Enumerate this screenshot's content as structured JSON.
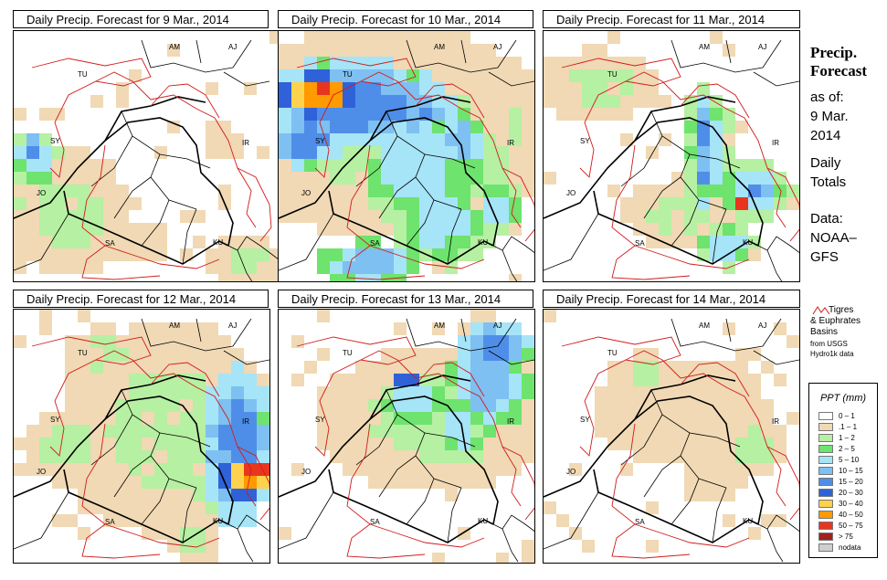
{
  "panels": [
    {
      "title": "Daily Precip. Forecast for  9 Mar., 2014"
    },
    {
      "title": "Daily Precip. Forecast for  10 Mar., 2014"
    },
    {
      "title": "Daily Precip. Forecast for  11 Mar., 2014"
    },
    {
      "title": "Daily Precip. Forecast for  12 Mar., 2014"
    },
    {
      "title": "Daily Precip. Forecast for  13 Mar., 2014"
    },
    {
      "title": "Daily Precip. Forecast for  14 Mar., 2014"
    }
  ],
  "map_labels": {
    "am": "AM",
    "aj": "AJ",
    "tu": "TU",
    "sy": "SY",
    "ir": "IR",
    "jo": "JO",
    "sa": "SA",
    "ku": "KU"
  },
  "side": {
    "title_line1": "Precip.",
    "title_line2": "Forecast",
    "asof_line1": "as of:",
    "asof_line2": "9 Mar.",
    "asof_line3": "2014",
    "totals_line1": "Daily",
    "totals_line2": "Totals",
    "data_line1": "Data:",
    "data_line2": "NOAA–",
    "data_line3": "GFS"
  },
  "basin_key": {
    "line1": "Tigres",
    "line2": "& Euphrates",
    "line3": "Basins",
    "line4": "from USGS",
    "line5": "Hydro1k data"
  },
  "legend": {
    "title": "PPT (mm)",
    "items": [
      {
        "label": "0 – 1",
        "color": "#ffffff"
      },
      {
        "label": ".1 – 1",
        "color": "#f0d9b4"
      },
      {
        "label": "1 – 2",
        "color": "#b6f0a2"
      },
      {
        "label": "2 – 5",
        "color": "#6ee36e"
      },
      {
        "label": "5 – 10",
        "color": "#a6e4f8"
      },
      {
        "label": "10 – 15",
        "color": "#7ec0f2"
      },
      {
        "label": "15 – 20",
        "color": "#4f8ee8"
      },
      {
        "label": "20 – 30",
        "color": "#2f62d8"
      },
      {
        "label": "30 – 40",
        "color": "#ffd24d"
      },
      {
        "label": "40 – 50",
        "color": "#ff9a00"
      },
      {
        "label": "50 – 75",
        "color": "#e8361e"
      },
      {
        "label": "> 75",
        "color": "#a0201c"
      },
      {
        "label": "nodata",
        "color": "#cfcfcf"
      }
    ]
  },
  "colors": {
    "basin": "#d11b1b",
    "border": "#000000"
  }
}
